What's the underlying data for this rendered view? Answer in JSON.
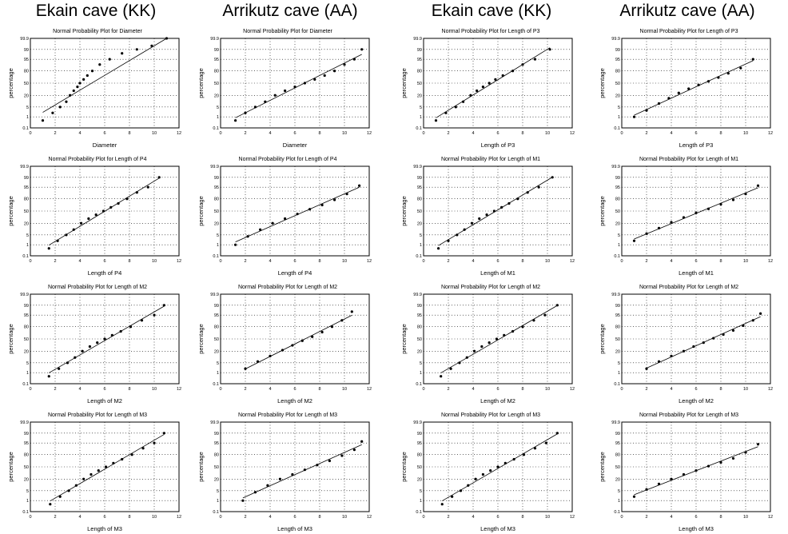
{
  "headers": [
    "Ekain cave (KK)",
    "Arrikutz cave (AA)",
    "Ekain cave (KK)",
    "Arrikutz cave (AA)"
  ],
  "chart_data": [
    {
      "type": "scatter",
      "col": 0,
      "row": 0,
      "title": "Normal Probability Plot for Diameter",
      "xlabel": "Diameter",
      "ylabel": "percentage",
      "xlim": [
        0,
        12
      ],
      "x_ticks": [
        "0",
        "2",
        "4",
        "6",
        "8",
        "10",
        "12"
      ],
      "ylim_prob": [
        0.1,
        99.9
      ],
      "x": [
        1.0,
        1.8,
        2.4,
        2.9,
        3.2,
        3.5,
        3.8,
        4.0,
        4.3,
        4.6,
        5.0,
        5.6,
        6.4,
        7.4,
        8.6,
        9.8,
        11.0
      ],
      "y": [
        0.5,
        2,
        5,
        10,
        20,
        30,
        40,
        50,
        60,
        70,
        80,
        90,
        95,
        98,
        99,
        99.5,
        99.9
      ]
    },
    {
      "type": "scatter",
      "col": 1,
      "row": 0,
      "title": "Normal Probability Plot for Diameter",
      "xlabel": "Diameter",
      "ylabel": "percentage",
      "xlim": [
        0,
        12
      ],
      "x_ticks": [
        "0",
        "2",
        "4",
        "6",
        "8",
        "10",
        "12"
      ],
      "ylim_prob": [
        0.1,
        99.9
      ],
      "x": [
        1.2,
        2.0,
        2.8,
        3.6,
        4.4,
        5.2,
        6.0,
        6.8,
        7.6,
        8.4,
        9.2,
        10.0,
        10.8,
        11.4
      ],
      "y": [
        0.5,
        2,
        5,
        10,
        20,
        30,
        40,
        50,
        60,
        70,
        80,
        90,
        95,
        99
      ]
    },
    {
      "type": "scatter",
      "col": 2,
      "row": 0,
      "title": "Normal Probability Plot for Length of P3",
      "xlabel": "Length of P3",
      "ylabel": "percentage",
      "xlim": [
        0,
        12
      ],
      "x_ticks": [
        "0",
        "2",
        "4",
        "6",
        "8",
        "10",
        "12"
      ],
      "ylim_prob": [
        0.1,
        99.9
      ],
      "x": [
        1.0,
        1.8,
        2.6,
        3.2,
        3.8,
        4.3,
        4.8,
        5.3,
        5.8,
        6.4,
        7.2,
        8.0,
        9.0,
        10.2
      ],
      "y": [
        0.5,
        2,
        5,
        10,
        20,
        30,
        40,
        50,
        60,
        70,
        80,
        90,
        95,
        99
      ]
    },
    {
      "type": "scatter",
      "col": 3,
      "row": 0,
      "title": "Normal Probability Plot for Length of P3",
      "xlabel": "Length of P3",
      "ylabel": "percentage",
      "xlim": [
        0,
        12
      ],
      "x_ticks": [
        "0",
        "2",
        "4",
        "6",
        "8",
        "10",
        "12"
      ],
      "ylim_prob": [
        0.1,
        99.9
      ],
      "x": [
        1.0,
        2.0,
        3.0,
        3.8,
        4.6,
        5.4,
        6.2,
        7.0,
        7.8,
        8.6,
        9.6,
        10.6
      ],
      "y": [
        1,
        3,
        8,
        15,
        25,
        35,
        45,
        55,
        65,
        75,
        85,
        95
      ]
    },
    {
      "type": "scatter",
      "col": 0,
      "row": 1,
      "title": "Normal Probability Plot for Length of P4",
      "xlabel": "Length of P4",
      "ylabel": "percentage",
      "xlim": [
        0,
        12
      ],
      "x_ticks": [
        "0",
        "2",
        "4",
        "6",
        "8",
        "10",
        "12"
      ],
      "ylim_prob": [
        0.1,
        99.9
      ],
      "x": [
        1.5,
        2.2,
        2.9,
        3.5,
        4.1,
        4.7,
        5.3,
        5.9,
        6.5,
        7.1,
        7.8,
        8.6,
        9.5,
        10.4
      ],
      "y": [
        0.5,
        2,
        5,
        10,
        20,
        30,
        40,
        50,
        60,
        70,
        80,
        90,
        95,
        99
      ]
    },
    {
      "type": "scatter",
      "col": 1,
      "row": 1,
      "title": "Normal Probability Plot for Length of P4",
      "xlabel": "Length of P4",
      "ylabel": "percentage",
      "xlim": [
        0,
        12
      ],
      "x_ticks": [
        "0",
        "2",
        "4",
        "6",
        "8",
        "10",
        "12"
      ],
      "ylim_prob": [
        0.1,
        99.9
      ],
      "x": [
        1.2,
        2.2,
        3.2,
        4.2,
        5.2,
        6.2,
        7.2,
        8.2,
        9.2,
        10.2,
        11.2
      ],
      "y": [
        1,
        4,
        10,
        20,
        30,
        42,
        55,
        66,
        78,
        88,
        96
      ]
    },
    {
      "type": "scatter",
      "col": 2,
      "row": 1,
      "title": "Normal Probability Plot for Length of M1",
      "xlabel": "Length of M1",
      "ylabel": "percentage",
      "xlim": [
        0,
        12
      ],
      "x_ticks": [
        "0",
        "2",
        "4",
        "6",
        "8",
        "10",
        "12"
      ],
      "ylim_prob": [
        0.1,
        99.9
      ],
      "x": [
        1.2,
        2.0,
        2.7,
        3.3,
        3.9,
        4.5,
        5.1,
        5.7,
        6.3,
        6.9,
        7.6,
        8.4,
        9.3,
        10.4
      ],
      "y": [
        0.5,
        2,
        5,
        10,
        20,
        30,
        40,
        50,
        60,
        70,
        80,
        90,
        95,
        99
      ]
    },
    {
      "type": "scatter",
      "col": 3,
      "row": 1,
      "title": "Normal Probability Plot for Length of M1",
      "xlabel": "Length of M1",
      "ylabel": "percentage",
      "xlim": [
        0,
        12
      ],
      "x_ticks": [
        "0",
        "2",
        "4",
        "6",
        "8",
        "10",
        "12"
      ],
      "ylim_prob": [
        0.1,
        99.9
      ],
      "x": [
        1.0,
        2.0,
        3.0,
        4.0,
        5.0,
        6.0,
        7.0,
        8.0,
        9.0,
        10.0,
        11.0
      ],
      "y": [
        2,
        6,
        12,
        22,
        33,
        45,
        56,
        68,
        78,
        88,
        96
      ]
    },
    {
      "type": "scatter",
      "col": 0,
      "row": 2,
      "title": "Normal Probability Plot for Length of M2",
      "xlabel": "Length of M2",
      "ylabel": "percentage",
      "xlim": [
        0,
        12
      ],
      "x_ticks": [
        "0",
        "2",
        "4",
        "6",
        "8",
        "10",
        "12"
      ],
      "ylim_prob": [
        0.1,
        99.9
      ],
      "x": [
        1.5,
        2.3,
        3.0,
        3.6,
        4.2,
        4.8,
        5.4,
        6.0,
        6.6,
        7.3,
        8.1,
        9.0,
        10.0,
        10.8
      ],
      "y": [
        0.5,
        2,
        5,
        10,
        20,
        30,
        40,
        50,
        60,
        70,
        80,
        90,
        95,
        99
      ]
    },
    {
      "type": "scatter",
      "col": 1,
      "row": 2,
      "title": "Normal Probability Plot for Length of M2",
      "xlabel": "Length of M2",
      "ylabel": "percentage",
      "xlim": [
        0,
        12
      ],
      "x_ticks": [
        "0",
        "2",
        "4",
        "6",
        "8",
        "10",
        "12"
      ],
      "ylim_prob": [
        0.1,
        99.9
      ],
      "x": [
        2.0,
        3.0,
        4.0,
        5.0,
        5.8,
        6.6,
        7.4,
        8.2,
        9.0,
        9.8,
        10.6
      ],
      "y": [
        2,
        6,
        12,
        22,
        33,
        45,
        56,
        68,
        80,
        90,
        97
      ]
    },
    {
      "type": "scatter",
      "col": 2,
      "row": 2,
      "title": "Normal Probability Plot for Length of M2",
      "xlabel": "Length of M2",
      "ylabel": "percentage",
      "xlim": [
        0,
        12
      ],
      "x_ticks": [
        "0",
        "2",
        "4",
        "6",
        "8",
        "10",
        "12"
      ],
      "ylim_prob": [
        0.1,
        99.9
      ],
      "x": [
        1.4,
        2.2,
        2.9,
        3.5,
        4.1,
        4.7,
        5.3,
        5.9,
        6.5,
        7.2,
        8.0,
        8.9,
        9.8,
        10.8
      ],
      "y": [
        0.5,
        2,
        5,
        10,
        20,
        30,
        40,
        50,
        60,
        70,
        80,
        90,
        95,
        99
      ]
    },
    {
      "type": "scatter",
      "col": 3,
      "row": 2,
      "title": "Normal Probability Plot for Length of M2",
      "xlabel": "Length of M2",
      "ylabel": "percentage",
      "xlim": [
        0,
        12
      ],
      "x_ticks": [
        "0",
        "2",
        "4",
        "6",
        "8",
        "10",
        "12"
      ],
      "ylim_prob": [
        0.1,
        99.9
      ],
      "x": [
        2.0,
        3.0,
        4.0,
        5.0,
        5.8,
        6.6,
        7.4,
        8.2,
        9.0,
        9.8,
        10.6,
        11.2
      ],
      "y": [
        2,
        6,
        12,
        20,
        30,
        40,
        52,
        62,
        72,
        82,
        90,
        96
      ]
    },
    {
      "type": "scatter",
      "col": 0,
      "row": 3,
      "title": "Normal Probability Plot for Length of M3",
      "xlabel": "Length of M3",
      "ylabel": "percentage",
      "xlim": [
        0,
        12
      ],
      "x_ticks": [
        "0",
        "2",
        "4",
        "6",
        "8",
        "10",
        "12"
      ],
      "ylim_prob": [
        0.1,
        99.9
      ],
      "x": [
        1.6,
        2.4,
        3.1,
        3.7,
        4.3,
        4.9,
        5.5,
        6.1,
        6.7,
        7.4,
        8.2,
        9.1,
        10.0,
        10.8
      ],
      "y": [
        0.5,
        2,
        5,
        10,
        20,
        30,
        40,
        50,
        60,
        70,
        80,
        90,
        95,
        99
      ]
    },
    {
      "type": "scatter",
      "col": 1,
      "row": 3,
      "title": "Normal Probability Plot for Length of M3",
      "xlabel": "Length of M3",
      "ylabel": "percentage",
      "xlim": [
        0,
        12
      ],
      "x_ticks": [
        "0",
        "2",
        "4",
        "6",
        "8",
        "10",
        "12"
      ],
      "ylim_prob": [
        0.1,
        99.9
      ],
      "x": [
        1.8,
        2.8,
        3.8,
        4.8,
        5.8,
        6.8,
        7.8,
        8.8,
        9.8,
        10.8,
        11.4
      ],
      "y": [
        1,
        4,
        10,
        20,
        30,
        42,
        55,
        66,
        78,
        88,
        96
      ]
    },
    {
      "type": "scatter",
      "col": 2,
      "row": 3,
      "title": "Normal Probability Plot for Length of M3",
      "xlabel": "Length of M3",
      "ylabel": "percentage",
      "xlim": [
        0,
        12
      ],
      "x_ticks": [
        "0",
        "2",
        "4",
        "6",
        "8",
        "10",
        "12"
      ],
      "ylim_prob": [
        0.1,
        99.9
      ],
      "x": [
        1.5,
        2.3,
        3.0,
        3.6,
        4.2,
        4.8,
        5.4,
        6.0,
        6.6,
        7.3,
        8.1,
        9.0,
        9.9,
        10.8
      ],
      "y": [
        0.5,
        2,
        5,
        10,
        20,
        30,
        40,
        50,
        60,
        70,
        80,
        90,
        95,
        99
      ]
    },
    {
      "type": "scatter",
      "col": 3,
      "row": 3,
      "title": "Normal Probability Plot for Length of M3",
      "xlabel": "Length of M3",
      "ylabel": "percentage",
      "xlim": [
        0,
        12
      ],
      "x_ticks": [
        "0",
        "2",
        "4",
        "6",
        "8",
        "10",
        "12"
      ],
      "ylim_prob": [
        0.1,
        99.9
      ],
      "x": [
        1.0,
        2.0,
        3.0,
        4.0,
        5.0,
        6.0,
        7.0,
        8.0,
        9.0,
        10.0,
        11.0
      ],
      "y": [
        2,
        6,
        12,
        20,
        30,
        40,
        52,
        62,
        72,
        84,
        94
      ]
    }
  ]
}
